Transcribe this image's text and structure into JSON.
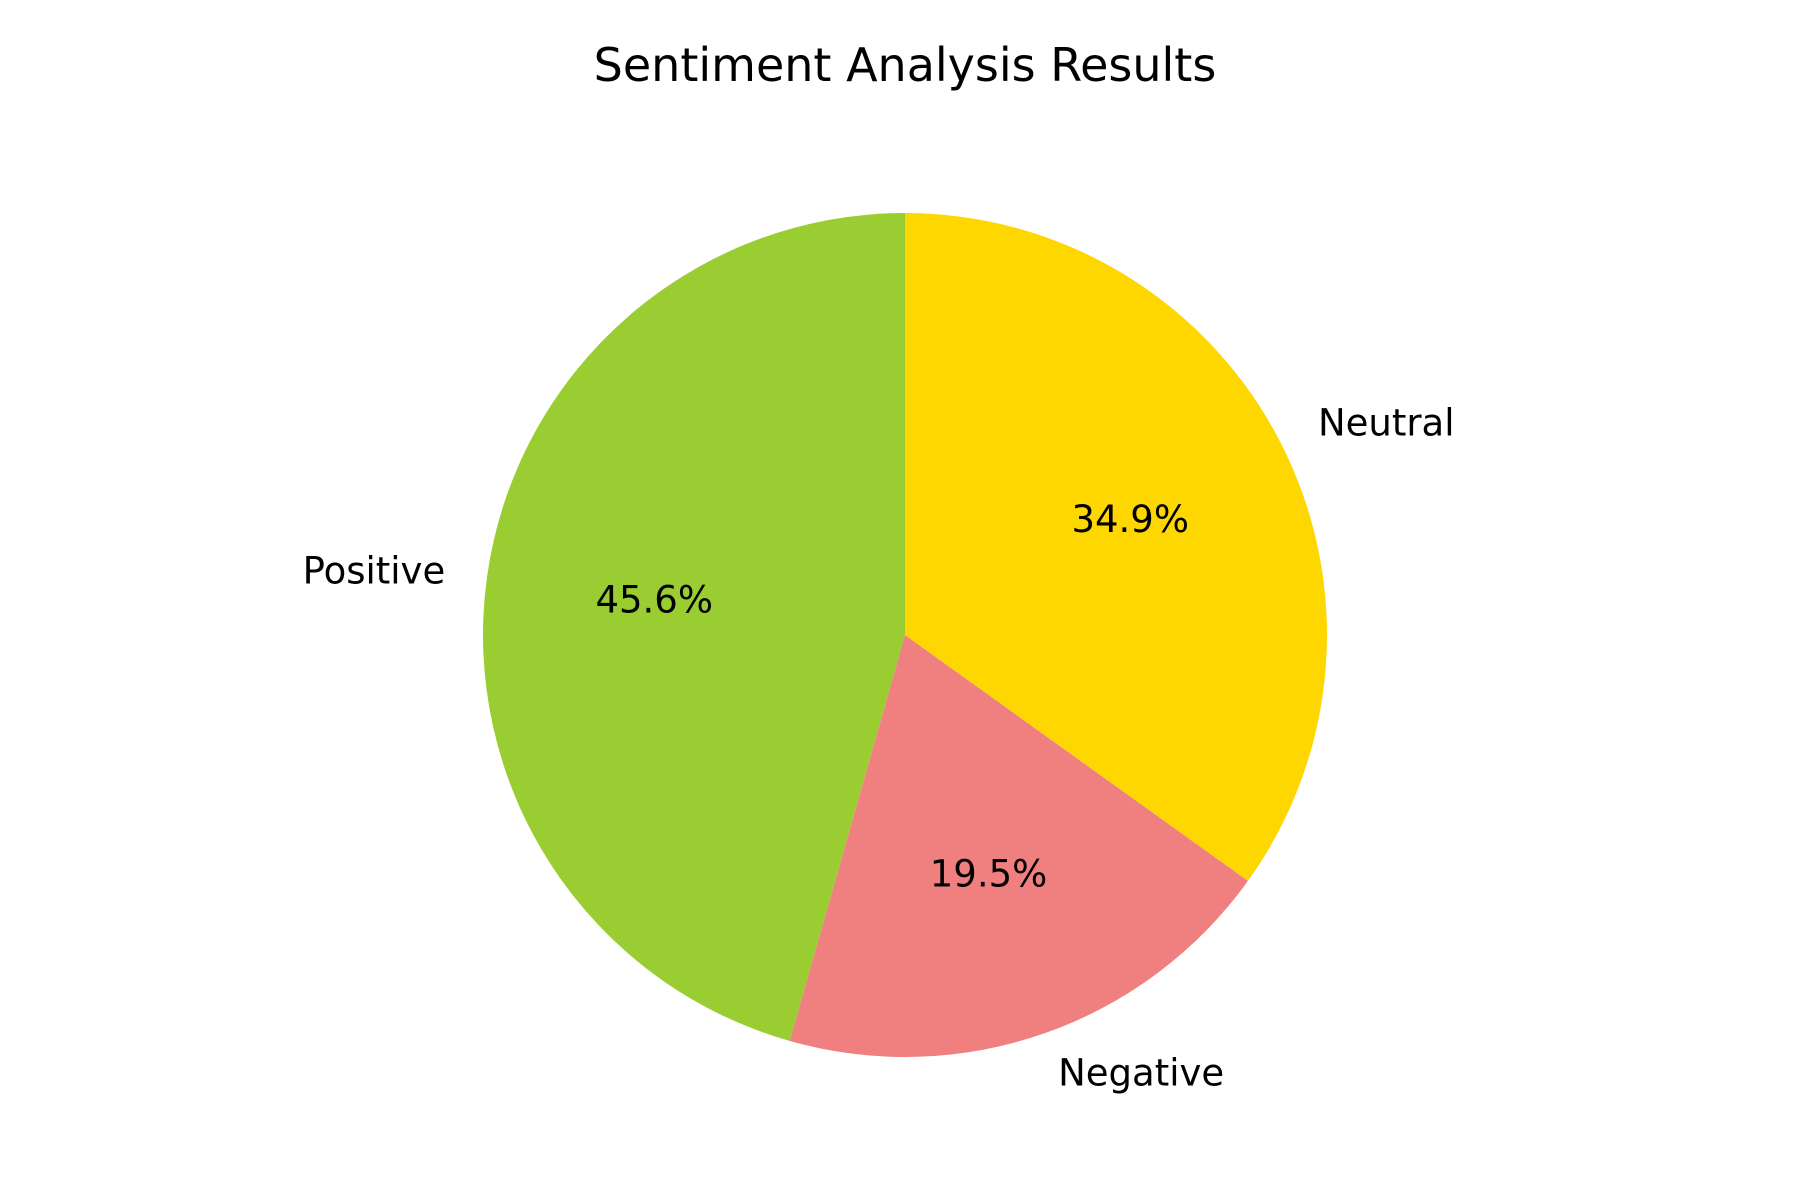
{
  "chart_data": {
    "type": "pie",
    "title": "Sentiment Analysis Results",
    "start_angle_deg": 90,
    "direction": "counterclockwise",
    "slices": [
      {
        "label": "Positive",
        "value": 45.6,
        "pct_label": "45.6%",
        "color": "#9ACD32"
      },
      {
        "label": "Negative",
        "value": 19.5,
        "pct_label": "19.5%",
        "color": "#F08080"
      },
      {
        "label": "Neutral",
        "value": 34.9,
        "pct_label": "34.9%",
        "color": "#FFD700"
      }
    ]
  }
}
